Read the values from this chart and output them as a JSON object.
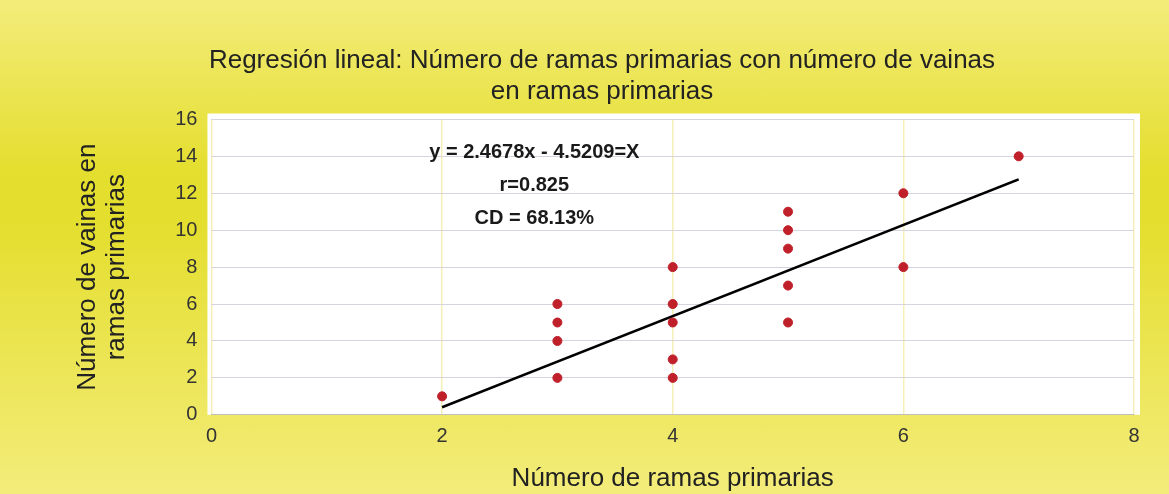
{
  "chart_data": {
    "type": "scatter",
    "title": "Regresión lineal: Número de ramas primarias con número de vainas en ramas primarias",
    "xlabel": "Número de ramas primarias",
    "ylabel": "Número de vainas en ramas primarias",
    "annotations": [
      "y = 2.4678x - 4.5209=X",
      "r=0.825",
      "CD = 68.13%"
    ],
    "series": [
      {
        "type": "scatter",
        "color": "#c0202a",
        "marker": "circle",
        "x": [
          2,
          3,
          3,
          3,
          3,
          4,
          4,
          4,
          4,
          4,
          5,
          5,
          5,
          5,
          5,
          6,
          6,
          7
        ],
        "values": [
          1,
          2,
          4,
          5,
          6,
          2,
          3,
          5,
          6,
          8,
          5,
          7,
          9,
          10,
          11,
          8,
          12,
          14
        ]
      },
      {
        "type": "line",
        "color": "#000000",
        "marker": "none",
        "x": [
          2,
          7
        ],
        "values": [
          0.41,
          12.75
        ]
      }
    ],
    "xlim": [
      0,
      8
    ],
    "xticks": [
      0,
      2,
      4,
      6,
      8
    ],
    "ylim": [
      0,
      16
    ],
    "yticks": [
      0,
      2,
      4,
      6,
      8,
      10,
      12,
      14,
      16
    ],
    "grid": true,
    "legend": false
  }
}
